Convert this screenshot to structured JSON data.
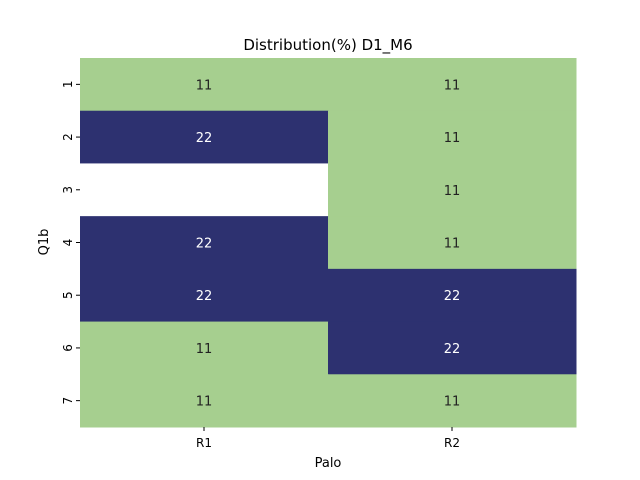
{
  "chart_data": {
    "type": "heatmap",
    "title": "Distribution(%) D1_M6",
    "xlabel": "Palo",
    "ylabel": "Q1b",
    "x_categories": [
      "R1",
      "R2"
    ],
    "y_categories": [
      "1",
      "2",
      "3",
      "4",
      "5",
      "6",
      "7"
    ],
    "values": [
      [
        11,
        11
      ],
      [
        22,
        11
      ],
      [
        null,
        11
      ],
      [
        22,
        11
      ],
      [
        22,
        22
      ],
      [
        11,
        22
      ],
      [
        11,
        11
      ]
    ],
    "colors": {
      "low": "#a6cf8f",
      "high": "#2d3170",
      "missing": "#ffffff",
      "label_on_low": "#222222",
      "label_on_high": "#ffffff"
    }
  }
}
